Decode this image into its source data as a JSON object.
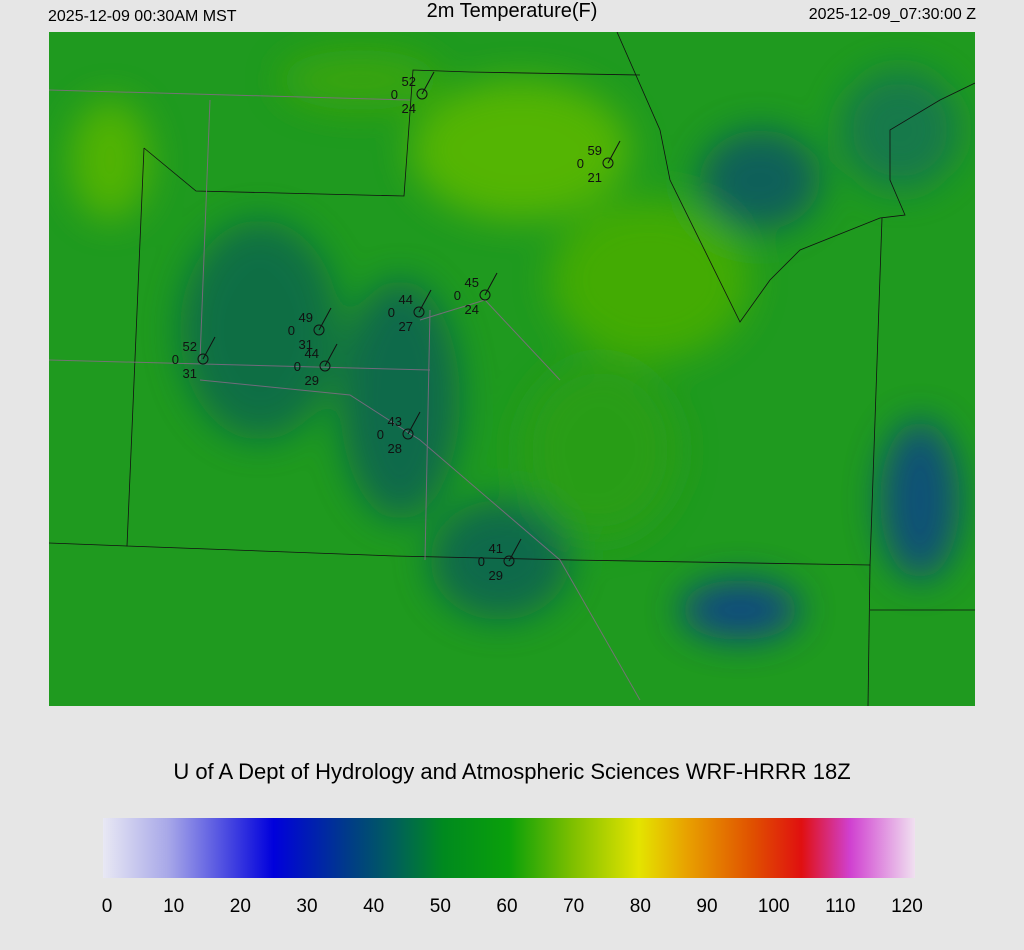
{
  "header": {
    "left": "2025-12-09 00:30AM MST",
    "title": "2m Temperature(F)",
    "right": "2025-12-09_07:30:00 Z"
  },
  "stations": [
    {
      "temp": "52",
      "wind": "0",
      "dew": "24"
    },
    {
      "temp": "59",
      "wind": "0",
      "dew": "21"
    },
    {
      "temp": "45",
      "wind": "0",
      "dew": "24"
    },
    {
      "temp": "44",
      "wind": "0",
      "dew": "27"
    },
    {
      "temp": "49",
      "wind": "0",
      "dew": "31"
    },
    {
      "temp": "44",
      "wind": "0",
      "dew": "29"
    },
    {
      "temp": "52",
      "wind": "0",
      "dew": "31"
    },
    {
      "temp": "43",
      "wind": "0",
      "dew": "28"
    },
    {
      "temp": "41",
      "wind": "0",
      "dew": "29"
    }
  ],
  "credit": "U of A Dept of Hydrology and Atmospheric Sciences WRF-HRRR 18Z",
  "colorbar": {
    "ticks": [
      0,
      10,
      20,
      30,
      40,
      50,
      60,
      70,
      80,
      90,
      100,
      110,
      120
    ]
  }
}
